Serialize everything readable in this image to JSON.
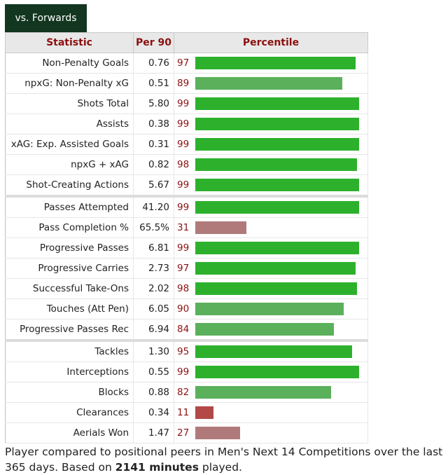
{
  "tab": {
    "label": "vs. Forwards"
  },
  "headers": {
    "statistic": "Statistic",
    "per90": "Per 90",
    "percentile": "Percentile"
  },
  "rows": [
    {
      "stat": "Non-Penalty Goals",
      "per90": "0.76",
      "pct": 97
    },
    {
      "stat": "npxG: Non-Penalty xG",
      "per90": "0.51",
      "pct": 89
    },
    {
      "stat": "Shots Total",
      "per90": "5.80",
      "pct": 99
    },
    {
      "stat": "Assists",
      "per90": "0.38",
      "pct": 99
    },
    {
      "stat": "xAG: Exp. Assisted Goals",
      "per90": "0.31",
      "pct": 99
    },
    {
      "stat": "npxG + xAG",
      "per90": "0.82",
      "pct": 98
    },
    {
      "stat": "Shot-Creating Actions",
      "per90": "5.67",
      "pct": 99
    },
    {
      "stat": "Passes Attempted",
      "per90": "41.20",
      "pct": 99
    },
    {
      "stat": "Pass Completion %",
      "per90": "65.5%",
      "pct": 31
    },
    {
      "stat": "Progressive Passes",
      "per90": "6.81",
      "pct": 99
    },
    {
      "stat": "Progressive Carries",
      "per90": "2.73",
      "pct": 97
    },
    {
      "stat": "Successful Take-Ons",
      "per90": "2.02",
      "pct": 98
    },
    {
      "stat": "Touches (Att Pen)",
      "per90": "6.05",
      "pct": 90
    },
    {
      "stat": "Progressive Passes Rec",
      "per90": "6.94",
      "pct": 84
    },
    {
      "stat": "Tackles",
      "per90": "1.30",
      "pct": 95
    },
    {
      "stat": "Interceptions",
      "per90": "0.55",
      "pct": 99
    },
    {
      "stat": "Blocks",
      "per90": "0.88",
      "pct": 82
    },
    {
      "stat": "Clearances",
      "per90": "0.34",
      "pct": 11
    },
    {
      "stat": "Aerials Won",
      "per90": "1.47",
      "pct": 27
    }
  ],
  "colors": {
    "high": "#2db12d",
    "mid": "#5bb05b",
    "low": "#b07a7a",
    "verylow": "#b34848"
  },
  "footer": {
    "text_before": "Player compared to positional peers in Men's Next 14 Competitions over the last 365 days. Based on ",
    "minutes": "2141 minutes",
    "text_after": " played."
  }
}
